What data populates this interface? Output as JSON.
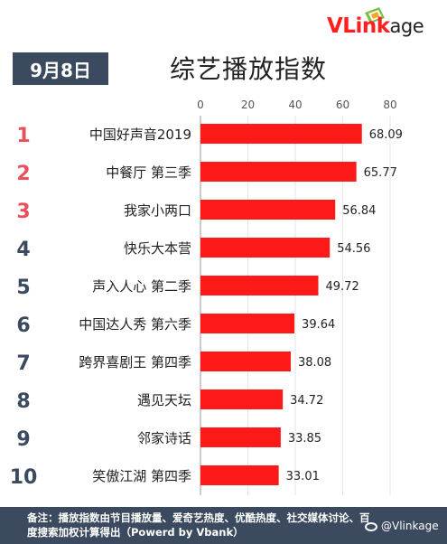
{
  "logo": {
    "text_big": "VLink",
    "text_small": "age"
  },
  "date": "9月8日",
  "footer": {
    "note": "备注：播放指数由节目播放量、爱奇艺热度、优酷热度、社交媒体讨论、百度搜索加权计算得出（Powerd by Vbank）",
    "watermark": "@Vlinkage"
  },
  "chart_data": {
    "type": "bar",
    "orientation": "horizontal",
    "title": "综艺播放指数",
    "xlim": [
      0,
      80
    ],
    "x_ticks": [
      "0",
      "20",
      "40",
      "60",
      "80"
    ],
    "grid": true,
    "ranks": [
      "1",
      "2",
      "3",
      "4",
      "5",
      "6",
      "7",
      "8",
      "9",
      "10"
    ],
    "categories": [
      "中国好声音2019",
      "中餐厅 第三季",
      "我家小两口",
      "快乐大本营",
      "声入人心 第二季",
      "中国达人秀 第六季",
      "跨界喜剧王 第四季",
      "遇见天坛",
      "邻家诗话",
      "笑傲江湖 第四季"
    ],
    "values": [
      68.09,
      65.77,
      56.84,
      54.56,
      49.72,
      39.64,
      38.08,
      34.72,
      33.85,
      33.01
    ],
    "value_labels": [
      "68.09",
      "65.77",
      "56.84",
      "54.56",
      "49.72",
      "39.64",
      "38.08",
      "34.72",
      "33.85",
      "33.01"
    ],
    "colors": {
      "bar": "#ff1a1a",
      "rank_top3": "#e8505b",
      "rank_other": "#3b4a5e"
    }
  }
}
